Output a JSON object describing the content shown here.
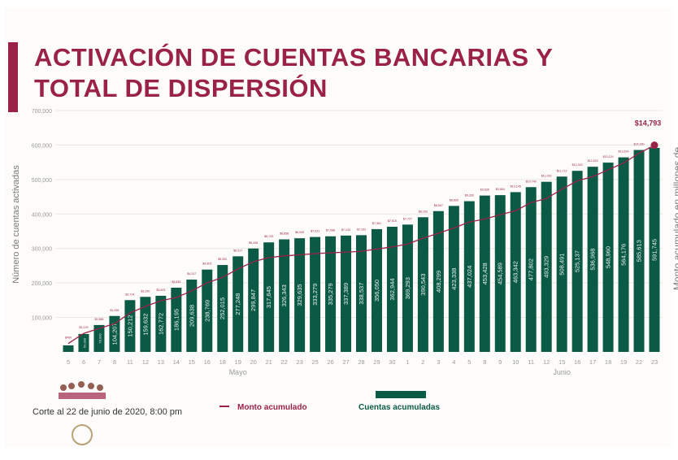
{
  "title_line1": "ACTIVACIÓN DE CUENTAS BANCARIAS Y",
  "title_line2": "TOTAL DE DISPERSIÓN",
  "colors": {
    "bar": "#0b5a45",
    "line": "#9b2247",
    "title": "#9b2247",
    "axis_text": "#9a9a9a"
  },
  "footnote": "Corte al 22 de junio de 2020, 8:00 pm",
  "chart_data": {
    "type": "bar",
    "title": "ACTIVACIÓN DE CUENTAS BANCARIAS Y TOTAL DE DISPERSIÓN",
    "ylabel": "Número de cuentas activadas",
    "y2label": "Monto acumulado en millones de pesos",
    "ylim": [
      0,
      700000
    ],
    "yticks": [
      "100,000",
      "200,000",
      "300,000",
      "400,000",
      "500,000",
      "600,000",
      "700,000"
    ],
    "ytick_values": [
      100000,
      200000,
      300000,
      400000,
      500000,
      600000,
      700000
    ],
    "month_labels": [
      {
        "label": "Mayo",
        "at_index": 11
      },
      {
        "label": "Junio",
        "at_index": 32
      }
    ],
    "categories": [
      "5",
      "6",
      "7",
      "8",
      "11",
      "12",
      "13",
      "14",
      "15",
      "16",
      "18",
      "19",
      "20",
      "21",
      "22",
      "23",
      "25",
      "26",
      "27",
      "28",
      "29",
      "30",
      "1",
      "2",
      "3",
      "4",
      "5",
      "8",
      "9",
      "10",
      "11",
      "12",
      "15",
      "16",
      "17",
      "18",
      "19",
      "22",
      "23"
    ],
    "series": [
      {
        "name": "Cuentas acumuladas",
        "type": "bar",
        "values": [
          19000,
          52000,
          78000,
          104207,
          150212,
          159632,
          162772,
          186195,
          209638,
          238769,
          252015,
          277248,
          299847,
          317645,
          326343,
          329635,
          333279,
          335279,
          337389,
          338537,
          356050,
          362944,
          369293,
          390543,
          408299,
          423338,
          437024,
          453428,
          454589,
          463342,
          477802,
          493329,
          508491,
          525137,
          536968,
          548960,
          564176,
          585613,
          591745
        ],
        "labels": [
          "",
          "52,000",
          "78,000",
          "104,207",
          "150,212",
          "159,632",
          "162,772",
          "186,195",
          "209,638",
          "238,769",
          "252,015",
          "277,248",
          "299,847",
          "317,645",
          "326,343",
          "329,635",
          "333,279",
          "335,279",
          "337,389",
          "338,537",
          "356,050",
          "362,944",
          "369,293",
          "390,543",
          "408,299",
          "423,338",
          "437,024",
          "453,428",
          "454,589",
          "463,342",
          "477,802",
          "493,329",
          "508,491",
          "525,137",
          "536,968",
          "548,960",
          "564,176",
          "585,613",
          "591,745"
        ]
      },
      {
        "name": "Monto acumulado",
        "type": "line",
        "values": [
          490,
          1229,
          1588,
          1935,
          2714,
          3190,
          3603,
          3835,
          4317,
          4903,
          5300,
          5917,
          6436,
          6743,
          6858,
          6940,
          7031,
          7088,
          7134,
          7193,
          7361,
          7515,
          7727,
          8153,
          8507,
          8895,
          9330,
          9535,
          9864,
          10145,
          10740,
          11033,
          11712,
          12320,
          12624,
          13124,
          13614,
          14330,
          14793
        ],
        "labels": [
          "$490",
          "$1,229",
          "$1,588",
          "$1,935",
          "$2,714",
          "$3,190",
          "$3,603",
          "$3,835",
          "$4,317",
          "$4,903",
          "$5,300",
          "$5,917",
          "$6,436",
          "$6,743",
          "$6,858",
          "$6,940",
          "$7,031",
          "$7,088",
          "$7,134",
          "$7,193",
          "$7,361",
          "$7,515",
          "$7,727",
          "$8,153",
          "$8,507",
          "$8,895",
          "$9,330",
          "$9,535",
          "$9,864",
          "$10,145",
          "$10,740",
          "$11,033",
          "$11,712",
          "$12,320",
          "$12,624",
          "$13,124",
          "$13,614",
          "$14,330",
          "$14,793"
        ]
      }
    ],
    "final_label": "$14,793",
    "legend": [
      {
        "label": "Monto acumulado",
        "kind": "line"
      },
      {
        "label": "Cuentas acumuladas",
        "kind": "bar"
      }
    ],
    "legend_position": "bottom",
    "grid": true
  }
}
